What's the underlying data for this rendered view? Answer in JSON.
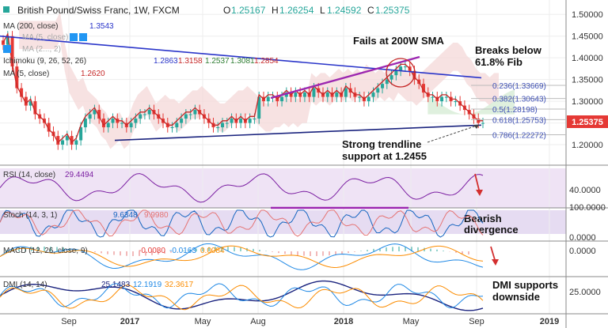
{
  "header": {
    "title": "British Pound/Swiss Franc, 1W, FXCM",
    "ohlc": [
      {
        "k": "O",
        "v": "1.25167"
      },
      {
        "k": "H",
        "v": "1.26254"
      },
      {
        "k": "L",
        "v": "1.24592"
      },
      {
        "k": "C",
        "v": "1.25375"
      }
    ]
  },
  "indicators": {
    "ma200": {
      "label": "MA (200, close)",
      "value": "1.3543"
    },
    "ma_hidden1": {
      "label": "MA (5, close)"
    },
    "ma_hidden2": {
      "label": "MA (2..., 2)"
    },
    "ichimoku": {
      "label": "Ichimoku (9, 26, 52, 26)",
      "values": [
        "1.2863",
        "1.3158",
        "1.2537",
        "1.3081",
        "1.2854"
      ]
    },
    "ma5": {
      "label": "MA (5, close)",
      "value": "1.2620"
    }
  },
  "annotations": {
    "fails": "Fails at 200W SMA",
    "breaks1": "Breaks below",
    "breaks2": "61.8% Fib",
    "trend1": "Strong trendline",
    "trend2": "support at 1.2455",
    "bearish1": "Bearish",
    "bearish2": "divergence",
    "dmi1": "DMI supports",
    "dmi2": "downside"
  },
  "fib": [
    {
      "label": "0.236(1.33669)",
      "value": 1.33669
    },
    {
      "label": "0.382(1.30643)",
      "value": 1.30643
    },
    {
      "label": "0.5(1.28198)",
      "value": 1.28198
    },
    {
      "label": "0.618(1.25753)",
      "value": 1.25753
    },
    {
      "label": "0.786(1.22272)",
      "value": 1.22272
    }
  ],
  "price_tag": {
    "label": "1.25375",
    "color": "#e53935"
  },
  "rsi_panel": {
    "label": "RSI (14, close)",
    "value": "29.4494",
    "axis": [
      "40.0000"
    ]
  },
  "stoch_panel": {
    "label": "Stoch (14, 3, 1)",
    "values": [
      "9.6348",
      "9.9980"
    ],
    "axis": [
      "100.0000",
      "0.0000"
    ]
  },
  "macd_panel": {
    "label": "MACD (12, 26, close, 9)",
    "values": [
      "-0.0080",
      "-0.0163",
      "0.0084"
    ],
    "axis": [
      "0.0000"
    ]
  },
  "dmi_panel": {
    "label": "DMI (14, 14)",
    "values": [
      "25.1483",
      "12.1919",
      "32.3617"
    ],
    "axis": [
      "25.0000"
    ]
  },
  "colors": {
    "bull": "#26a69a",
    "bear": "#e53935",
    "ma200": "#2a35c9",
    "trend": "#1a237e",
    "purple": "#9c27b0",
    "fib": "#3f51b5"
  },
  "chart_data": {
    "type": "candlestick",
    "title": "British Pound/Swiss Franc, 1W, FXCM",
    "x_ticks": [
      "Sep",
      "2017",
      "May",
      "Aug",
      "2018",
      "May",
      "Sep",
      "2019"
    ],
    "y_ticks": [
      "1.50000",
      "1.45000",
      "1.40000",
      "1.35000",
      "1.30000",
      "1.25000",
      "1.20000"
    ],
    "ylim": [
      1.16,
      1.515
    ],
    "close_series": [
      1.43,
      1.45,
      1.38,
      1.33,
      1.31,
      1.29,
      1.3,
      1.27,
      1.26,
      1.25,
      1.23,
      1.22,
      1.2,
      1.21,
      1.22,
      1.2,
      1.21,
      1.24,
      1.26,
      1.27,
      1.28,
      1.26,
      1.24,
      1.25,
      1.26,
      1.25,
      1.25,
      1.24,
      1.25,
      1.26,
      1.27,
      1.27,
      1.28,
      1.27,
      1.26,
      1.25,
      1.24,
      1.24,
      1.25,
      1.26,
      1.27,
      1.27,
      1.28,
      1.27,
      1.26,
      1.25,
      1.24,
      1.24,
      1.25,
      1.25,
      1.26,
      1.25,
      1.26,
      1.25,
      1.26,
      1.26,
      1.31,
      1.3,
      1.31,
      1.31,
      1.3,
      1.31,
      1.32,
      1.31,
      1.32,
      1.31,
      1.32,
      1.31,
      1.33,
      1.32,
      1.31,
      1.32,
      1.31,
      1.32,
      1.31,
      1.33,
      1.32,
      1.31,
      1.31,
      1.3,
      1.31,
      1.32,
      1.33,
      1.34,
      1.35,
      1.36,
      1.37,
      1.38,
      1.38,
      1.37,
      1.35,
      1.34,
      1.32,
      1.31,
      1.31,
      1.3,
      1.31,
      1.31,
      1.3,
      1.3,
      1.29,
      1.28,
      1.27,
      1.26,
      1.25,
      1.25
    ],
    "ma200": [
      1.45,
      1.354
    ],
    "trendline": [
      1.21,
      1.245
    ]
  }
}
